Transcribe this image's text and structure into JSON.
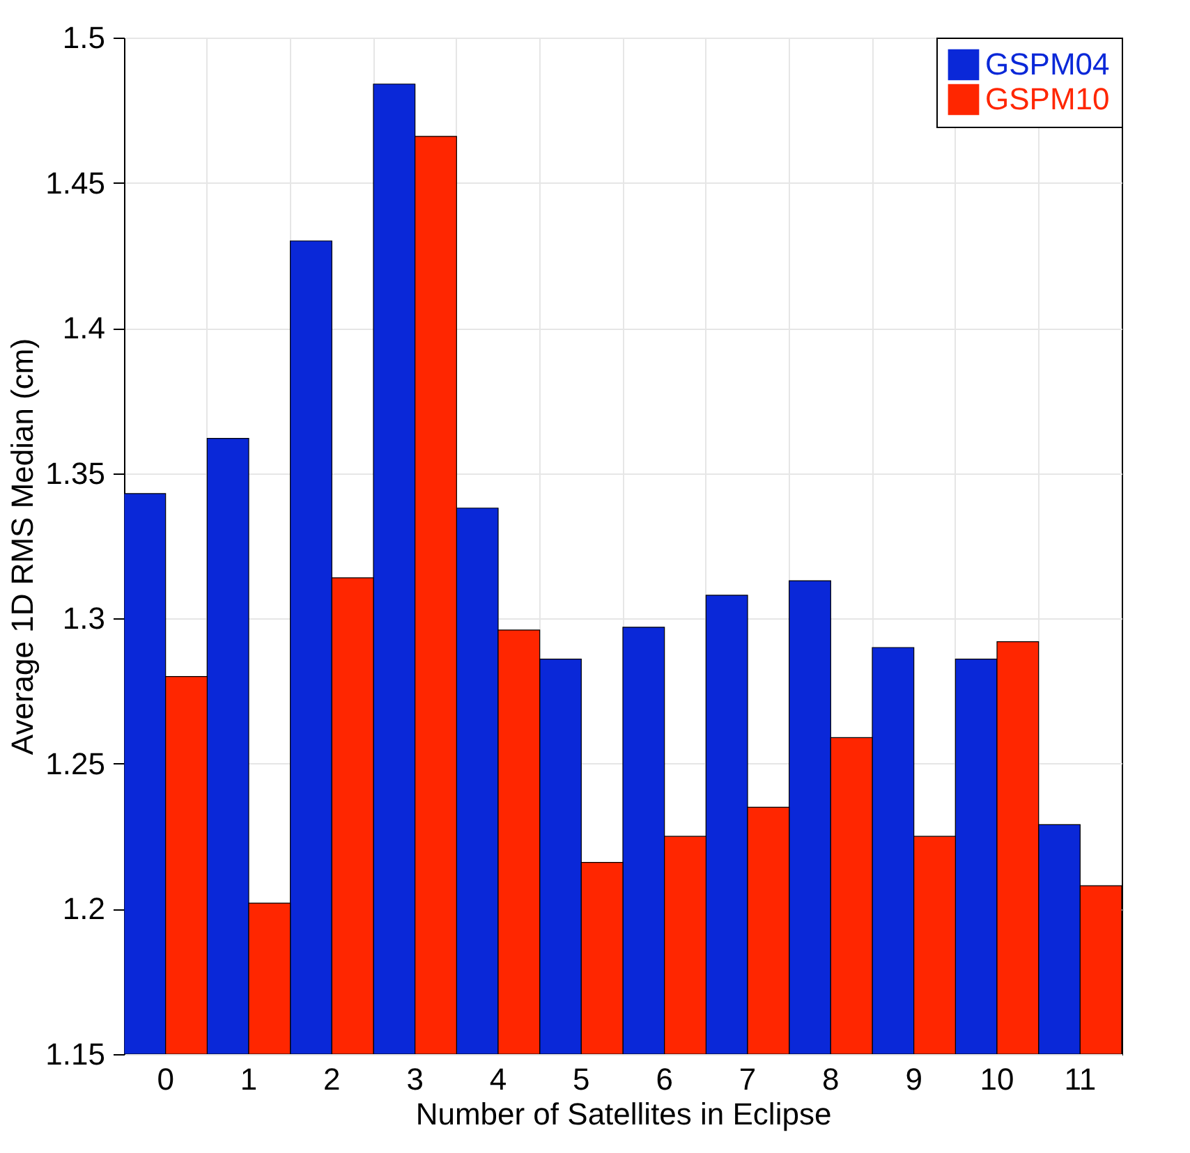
{
  "chart_data": {
    "type": "bar",
    "xlabel": "Number of Satellites in Eclipse",
    "ylabel": "Average 1D RMS Median (cm)",
    "categories": [
      "0",
      "1",
      "2",
      "3",
      "4",
      "5",
      "6",
      "7",
      "8",
      "9",
      "10",
      "11"
    ],
    "series": [
      {
        "name": "GSPM04",
        "color": "#0a28d8",
        "values": [
          1.343,
          1.362,
          1.43,
          1.484,
          1.338,
          1.286,
          1.297,
          1.308,
          1.313,
          1.29,
          1.286,
          1.229
        ]
      },
      {
        "name": "GSPM10",
        "color": "#ff2600",
        "values": [
          1.28,
          1.202,
          1.314,
          1.466,
          1.296,
          1.216,
          1.225,
          1.235,
          1.259,
          1.225,
          1.292,
          1.208
        ]
      }
    ],
    "ylim": [
      1.15,
      1.5
    ],
    "yticks": [
      1.15,
      1.2,
      1.25,
      1.3,
      1.35,
      1.4,
      1.45,
      1.5
    ],
    "grid": true,
    "legend": "top right"
  }
}
